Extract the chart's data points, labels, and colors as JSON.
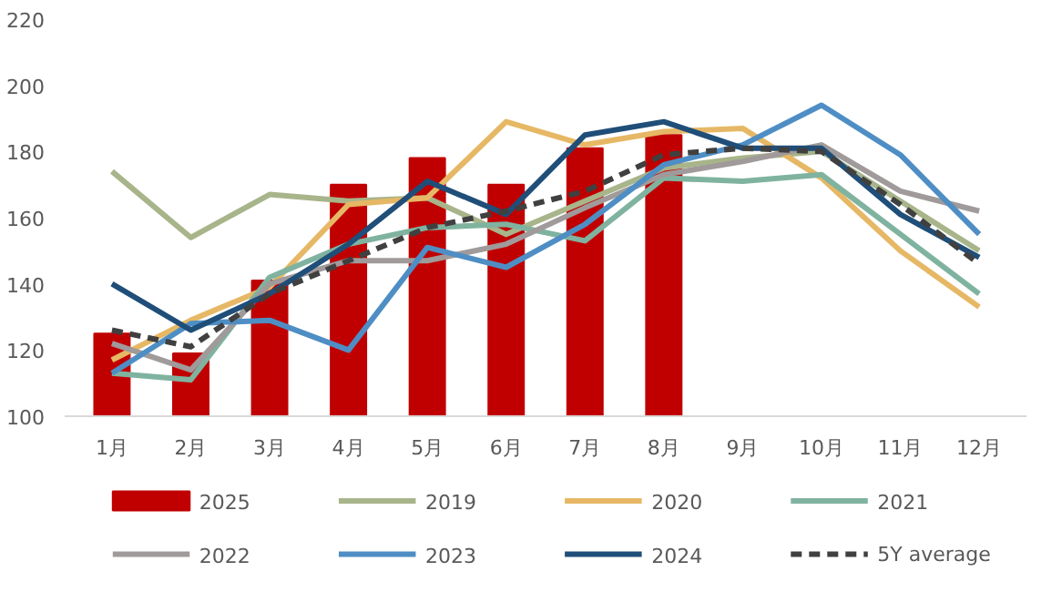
{
  "chart_data": {
    "type": "line",
    "categories": [
      "1月",
      "2月",
      "3月",
      "4月",
      "5月",
      "6月",
      "7月",
      "8月",
      "9月",
      "10月",
      "11月",
      "12月"
    ],
    "ylim": [
      100,
      220
    ],
    "yticks": [
      100,
      120,
      140,
      160,
      180,
      200,
      220
    ],
    "grid": false,
    "legend": "bottom",
    "series": [
      {
        "name": "2025",
        "type": "bar",
        "color": "#c00000",
        "values": [
          125,
          119,
          141,
          170,
          178,
          170,
          181,
          185,
          null,
          null,
          null,
          null
        ]
      },
      {
        "name": "2019",
        "color": "#a8b48a",
        "values": [
          174,
          154,
          167,
          165,
          166,
          155,
          165,
          175,
          178,
          180,
          165,
          150
        ]
      },
      {
        "name": "2020",
        "color": "#e6b865",
        "values": [
          117,
          129,
          139,
          164,
          166,
          189,
          182,
          186,
          187,
          172,
          150,
          133
        ]
      },
      {
        "name": "2021",
        "color": "#7fb3a0",
        "values": [
          113,
          111,
          142,
          152,
          157,
          158,
          153,
          172,
          171,
          173,
          155,
          137
        ]
      },
      {
        "name": "2022",
        "color": "#a09a9a",
        "values": [
          122,
          114,
          140,
          147,
          147,
          152,
          163,
          173,
          177,
          182,
          168,
          162
        ]
      },
      {
        "name": "2023",
        "color": "#4e8ec4",
        "values": [
          113,
          128,
          129,
          120,
          151,
          145,
          158,
          176,
          182,
          194,
          179,
          155
        ]
      },
      {
        "name": "2024",
        "color": "#1f4e79",
        "values": [
          140,
          126,
          137,
          152,
          171,
          161,
          185,
          189,
          181,
          181,
          161,
          148
        ]
      },
      {
        "name": "5Y average",
        "color": "#404040",
        "line_style": "dashed",
        "values": [
          126,
          121,
          137,
          147,
          157,
          162,
          168,
          179,
          181,
          180,
          164,
          146
        ]
      }
    ]
  }
}
